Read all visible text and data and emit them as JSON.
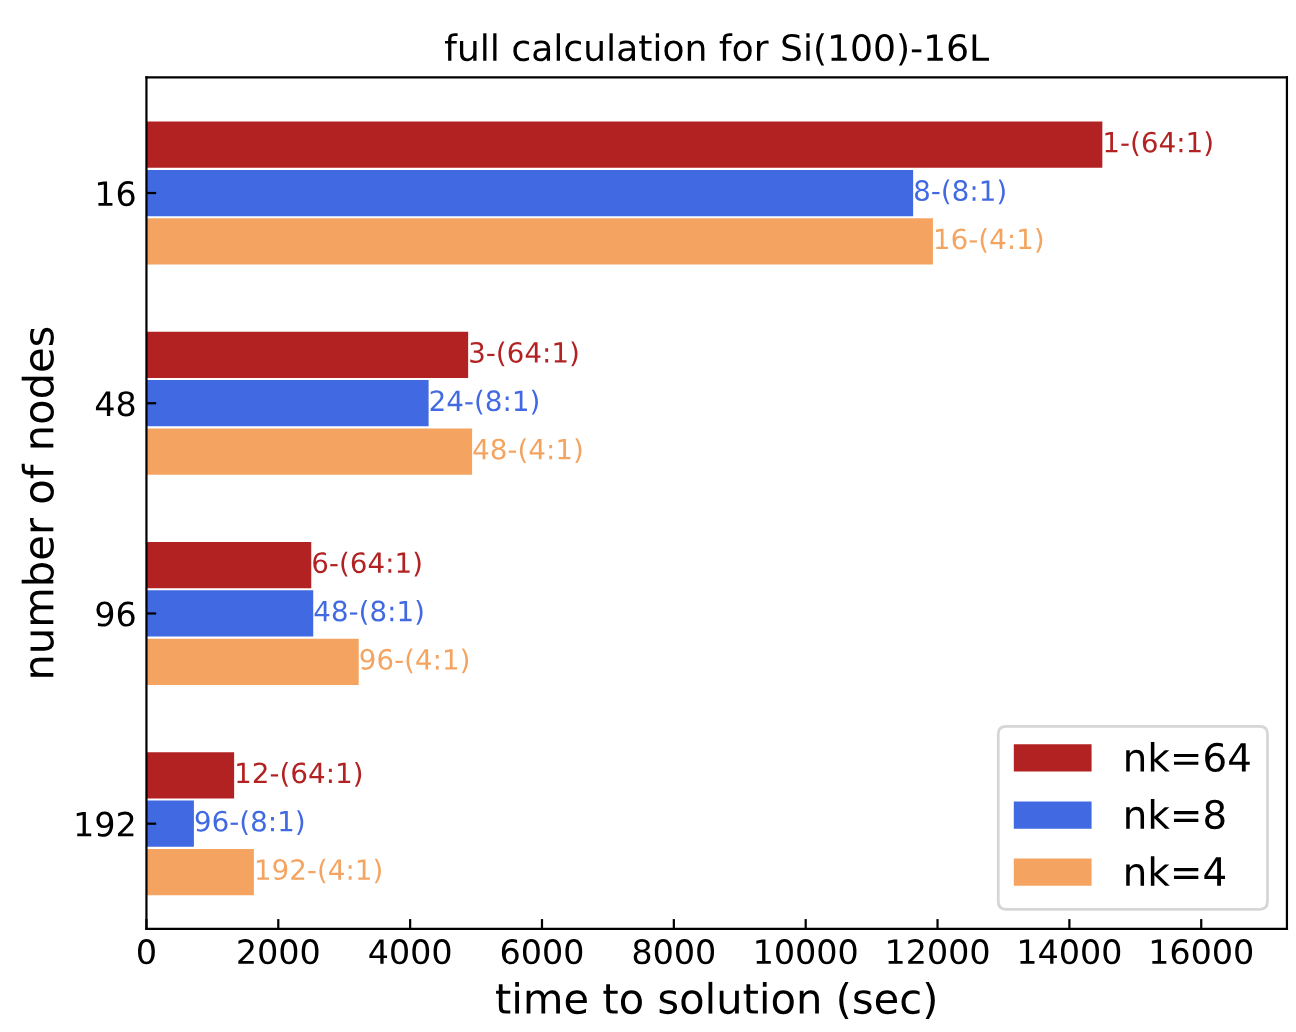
{
  "chart_data": {
    "type": "bar",
    "orientation": "horizontal",
    "title": "full calculation for Si(100)-16L",
    "xlabel": "time to solution (sec)",
    "ylabel": "number of nodes",
    "categories": [
      "16",
      "48",
      "96",
      "192"
    ],
    "series": [
      {
        "name": "nk=64",
        "color": "#b22222",
        "values": [
          14500,
          4880,
          2500,
          1330
        ],
        "value_labels": [
          "1-(64:1)",
          "3-(64:1)",
          "6-(64:1)",
          "12-(64:1)"
        ]
      },
      {
        "name": "nk=8",
        "color": "#4169e1",
        "values": [
          11630,
          4280,
          2530,
          720
        ],
        "value_labels": [
          "8-(8:1)",
          "24-(8:1)",
          "48-(8:1)",
          "96-(8:1)"
        ]
      },
      {
        "name": "nk=4",
        "color": "#f4a460",
        "values": [
          11930,
          4940,
          3220,
          1630
        ],
        "value_labels": [
          "16-(4:1)",
          "48-(4:1)",
          "96-(4:1)",
          "192-(4:1)"
        ]
      }
    ],
    "xlim": [
      0,
      17300
    ],
    "xticks": [
      0,
      2000,
      4000,
      6000,
      8000,
      10000,
      12000,
      14000,
      16000
    ],
    "legend": "lower right",
    "grid": false
  }
}
